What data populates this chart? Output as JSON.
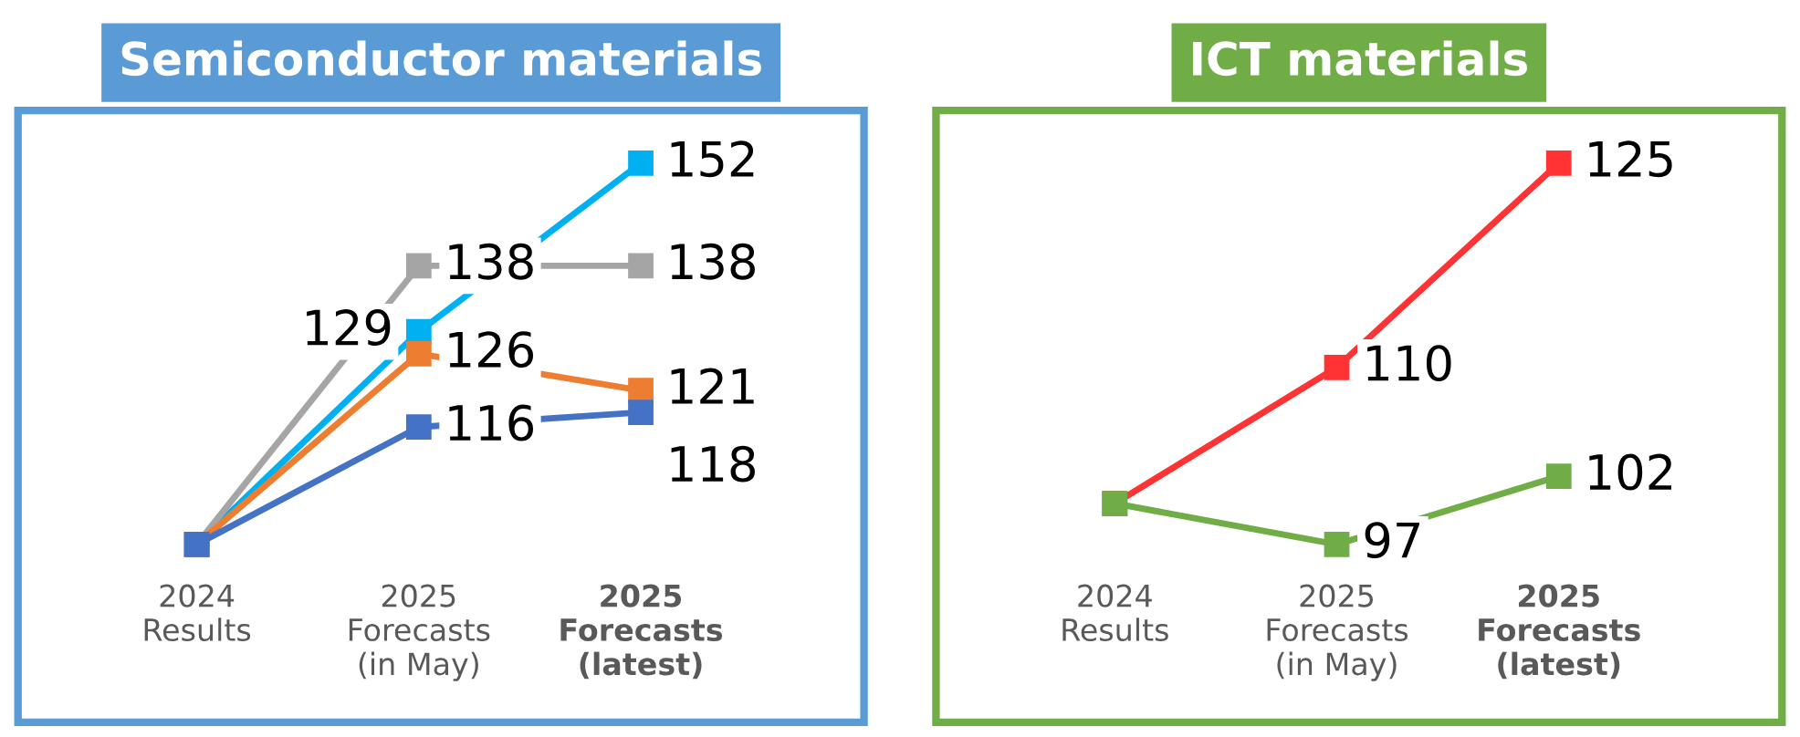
{
  "chart_data": [
    {
      "type": "line",
      "title": "Semiconductor materials",
      "categories": [
        "2024\nResults",
        "2025\nForecasts\n(in May)",
        "2025\nForecasts\n(latest)"
      ],
      "marker": "square",
      "line_style": "solid",
      "grid": false,
      "legend": false,
      "series": [
        {
          "color": "#00b0f0",
          "values": [
            100,
            129,
            152
          ],
          "value_labels": [
            null,
            "129",
            "152"
          ]
        },
        {
          "color": "#a5a5a5",
          "values": [
            100,
            138,
            138
          ],
          "value_labels": [
            null,
            "138",
            "138"
          ]
        },
        {
          "color": "#ed7d31",
          "values": [
            100,
            126,
            121
          ],
          "value_labels": [
            null,
            "126",
            "121"
          ]
        },
        {
          "color": "#4472c4",
          "values": [
            100,
            116,
            118
          ],
          "value_labels": [
            null,
            "116",
            "118"
          ]
        }
      ]
    },
    {
      "type": "line",
      "title": "ICT materials",
      "categories": [
        "2024\nResults",
        "2025\nForecasts\n(in May)",
        "2025\nForecasts\n(latest)"
      ],
      "marker": "square",
      "line_style": "solid",
      "grid": false,
      "legend": false,
      "series": [
        {
          "color": "#ff3333",
          "values": [
            100,
            110,
            125
          ],
          "value_labels": [
            null,
            "110",
            "125"
          ]
        },
        {
          "color": "#70ad47",
          "values": [
            100,
            97,
            102
          ],
          "value_labels": [
            null,
            "97",
            "102"
          ]
        }
      ]
    }
  ]
}
